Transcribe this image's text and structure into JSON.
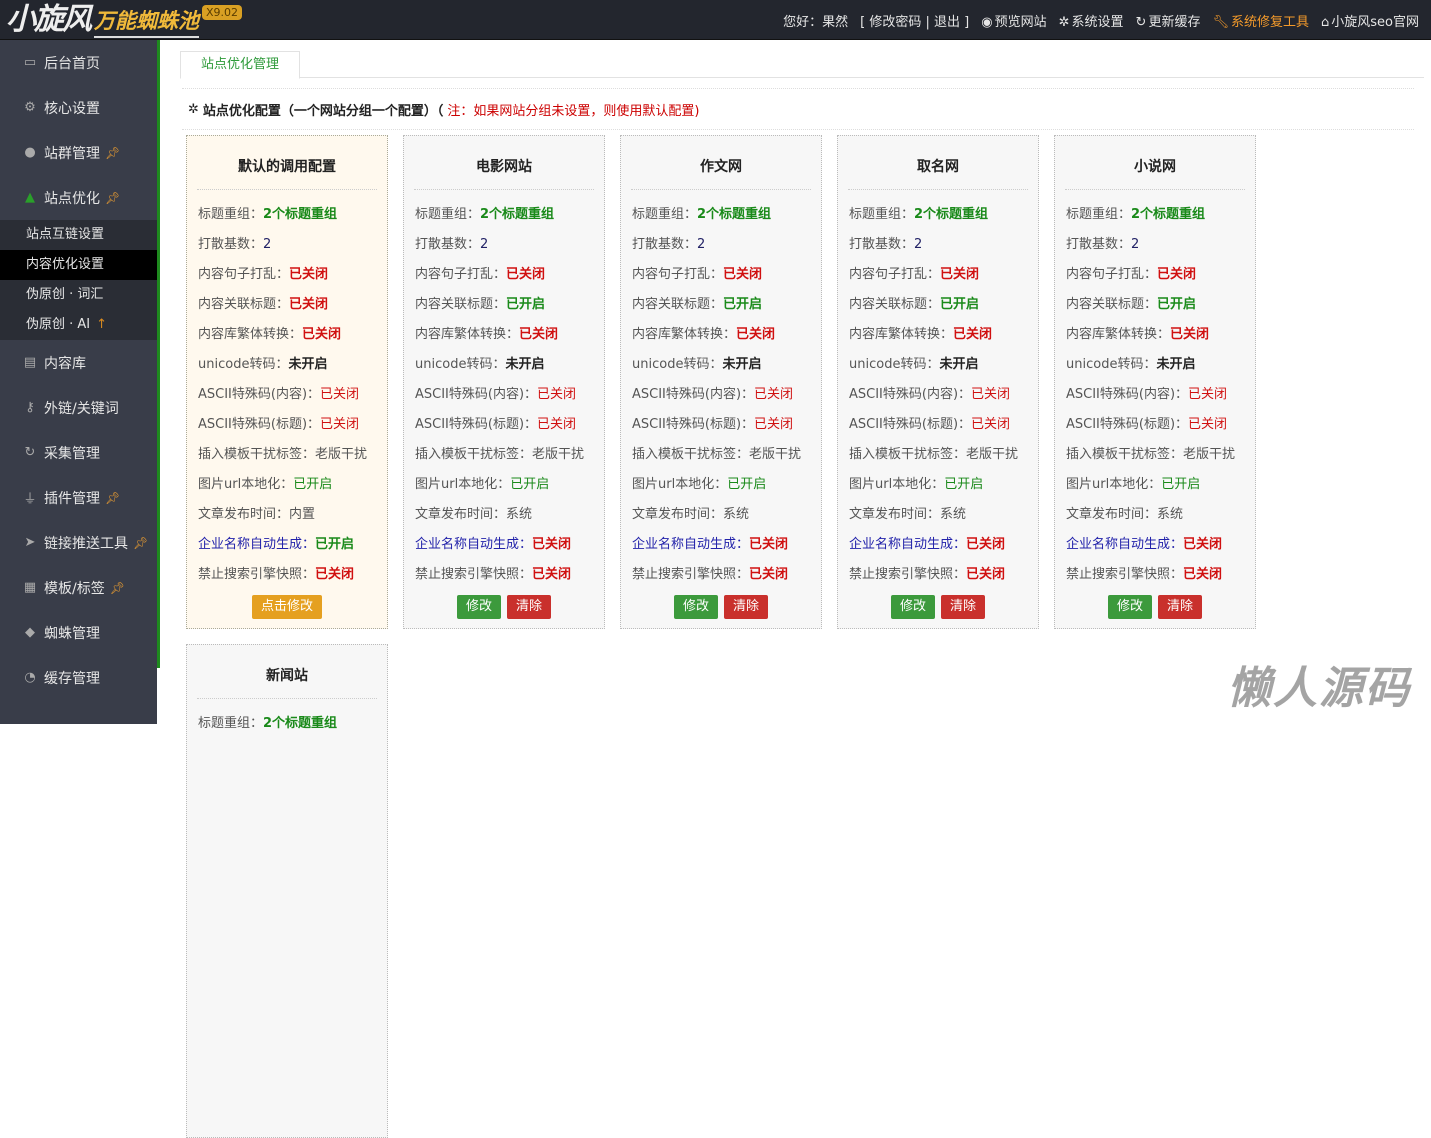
{
  "header": {
    "logo_main": "小旋风",
    "logo_sub": "万能蜘蛛池",
    "version": "X9.02",
    "greeting": "您好：果然",
    "change_password": "[ 修改密码",
    "separator": "|",
    "logout": "退出 ]",
    "preview": "预览网站",
    "settings": "系统设置",
    "refresh_cache": "更新缓存",
    "repair": "系统修复工具",
    "official": "小旋风seo官网"
  },
  "sidebar": {
    "items": [
      {
        "label": "后台首页",
        "icon": "monitor-icon"
      },
      {
        "label": "核心设置",
        "icon": "gear-icon"
      },
      {
        "label": "站群管理",
        "icon": "user-icon",
        "pin": true
      },
      {
        "label": "站点优化",
        "icon": "thumbs-up-icon",
        "pin": true
      },
      {
        "label": "内容库",
        "icon": "document-icon"
      },
      {
        "label": "外链/关键词",
        "icon": "key-icon"
      },
      {
        "label": "采集管理",
        "icon": "refresh-icon"
      },
      {
        "label": "插件管理",
        "icon": "plug-icon",
        "pin": true
      },
      {
        "label": "链接推送工具",
        "icon": "send-icon",
        "pin": true
      },
      {
        "label": "模板/标签",
        "icon": "windows-icon",
        "pin": true
      },
      {
        "label": "蜘蛛管理",
        "icon": "android-icon"
      },
      {
        "label": "缓存管理",
        "icon": "timer-icon"
      }
    ],
    "submenu": [
      {
        "label": "站点互链设置"
      },
      {
        "label": "内容优化设置",
        "current": true
      },
      {
        "label": "伪原创 · 词汇"
      },
      {
        "label": "伪原创 · AI",
        "up": "↑"
      }
    ]
  },
  "main": {
    "tab": "站点优化管理",
    "section_title": "站点优化配置（一个网站分组一个配置）（",
    "section_note": "注：如果网站分组未设置，则使用默认配置)",
    "buttons": {
      "edit_default": "点击修改",
      "edit": "修改",
      "clear": "清除"
    },
    "cards": [
      {
        "title": "默认的调用配置",
        "default": true,
        "rows": [
          [
            "标题重组：",
            "2个标题重组",
            "v-green b"
          ],
          [
            "打散基数：",
            "2",
            "v-num"
          ],
          [
            "内容句子打乱：",
            "已关闭",
            "v-red b"
          ],
          [
            "内容关联标题：",
            "已关闭",
            "v-red b"
          ],
          [
            "内容库繁体转换：",
            "已关闭",
            "v-red b"
          ],
          [
            "unicode转码：",
            "未开启",
            "v-dark"
          ],
          [
            "ASCII特殊码(内容)：",
            "已关闭",
            "v-red"
          ],
          [
            "ASCII特殊码(标题)：",
            "已关闭",
            "v-red"
          ],
          [
            "插入模板干扰标签：",
            "老版干扰",
            "v-plain"
          ],
          [
            "图片url本地化：",
            "已开启",
            "v-green"
          ],
          [
            "文章发布时间：",
            "内置",
            "v-plain"
          ],
          [
            "企业名称自动生成：",
            "已开启",
            "v-green b",
            "blue"
          ],
          [
            "禁止搜索引擎快照：",
            "已关闭",
            "v-red b"
          ]
        ]
      },
      {
        "title": "电影网站",
        "rows": [
          [
            "标题重组：",
            "2个标题重组",
            "v-green b"
          ],
          [
            "打散基数：",
            "2",
            "v-num"
          ],
          [
            "内容句子打乱：",
            "已关闭",
            "v-red b"
          ],
          [
            "内容关联标题：",
            "已开启",
            "v-green b"
          ],
          [
            "内容库繁体转换：",
            "已关闭",
            "v-red b"
          ],
          [
            "unicode转码：",
            "未开启",
            "v-dark"
          ],
          [
            "ASCII特殊码(内容)：",
            "已关闭",
            "v-red"
          ],
          [
            "ASCII特殊码(标题)：",
            "已关闭",
            "v-red"
          ],
          [
            "插入模板干扰标签：",
            "老版干扰",
            "v-plain"
          ],
          [
            "图片url本地化：",
            "已开启",
            "v-green"
          ],
          [
            "文章发布时间：",
            "系统",
            "v-plain"
          ],
          [
            "企业名称自动生成：",
            "已关闭",
            "v-red b",
            "blue"
          ],
          [
            "禁止搜索引擎快照：",
            "已关闭",
            "v-red b"
          ]
        ]
      },
      {
        "title": "作文网",
        "rows": [
          [
            "标题重组：",
            "2个标题重组",
            "v-green b"
          ],
          [
            "打散基数：",
            "2",
            "v-num"
          ],
          [
            "内容句子打乱：",
            "已关闭",
            "v-red b"
          ],
          [
            "内容关联标题：",
            "已开启",
            "v-green b"
          ],
          [
            "内容库繁体转换：",
            "已关闭",
            "v-red b"
          ],
          [
            "unicode转码：",
            "未开启",
            "v-dark"
          ],
          [
            "ASCII特殊码(内容)：",
            "已关闭",
            "v-red"
          ],
          [
            "ASCII特殊码(标题)：",
            "已关闭",
            "v-red"
          ],
          [
            "插入模板干扰标签：",
            "老版干扰",
            "v-plain"
          ],
          [
            "图片url本地化：",
            "已开启",
            "v-green"
          ],
          [
            "文章发布时间：",
            "系统",
            "v-plain"
          ],
          [
            "企业名称自动生成：",
            "已关闭",
            "v-red b",
            "blue"
          ],
          [
            "禁止搜索引擎快照：",
            "已关闭",
            "v-red b"
          ]
        ]
      },
      {
        "title": "取名网",
        "rows": [
          [
            "标题重组：",
            "2个标题重组",
            "v-green b"
          ],
          [
            "打散基数：",
            "2",
            "v-num"
          ],
          [
            "内容句子打乱：",
            "已关闭",
            "v-red b"
          ],
          [
            "内容关联标题：",
            "已开启",
            "v-green b"
          ],
          [
            "内容库繁体转换：",
            "已关闭",
            "v-red b"
          ],
          [
            "unicode转码：",
            "未开启",
            "v-dark"
          ],
          [
            "ASCII特殊码(内容)：",
            "已关闭",
            "v-red"
          ],
          [
            "ASCII特殊码(标题)：",
            "已关闭",
            "v-red"
          ],
          [
            "插入模板干扰标签：",
            "老版干扰",
            "v-plain"
          ],
          [
            "图片url本地化：",
            "已开启",
            "v-green"
          ],
          [
            "文章发布时间：",
            "系统",
            "v-plain"
          ],
          [
            "企业名称自动生成：",
            "已关闭",
            "v-red b",
            "blue"
          ],
          [
            "禁止搜索引擎快照：",
            "已关闭",
            "v-red b"
          ]
        ]
      },
      {
        "title": "小说网",
        "rows": [
          [
            "标题重组：",
            "2个标题重组",
            "v-green b"
          ],
          [
            "打散基数：",
            "2",
            "v-num"
          ],
          [
            "内容句子打乱：",
            "已关闭",
            "v-red b"
          ],
          [
            "内容关联标题：",
            "已开启",
            "v-green b"
          ],
          [
            "内容库繁体转换：",
            "已关闭",
            "v-red b"
          ],
          [
            "unicode转码：",
            "未开启",
            "v-dark"
          ],
          [
            "ASCII特殊码(内容)：",
            "已关闭",
            "v-red"
          ],
          [
            "ASCII特殊码(标题)：",
            "已关闭",
            "v-red"
          ],
          [
            "插入模板干扰标签：",
            "老版干扰",
            "v-plain"
          ],
          [
            "图片url本地化：",
            "已开启",
            "v-green"
          ],
          [
            "文章发布时间：",
            "系统",
            "v-plain"
          ],
          [
            "企业名称自动生成：",
            "已关闭",
            "v-red b",
            "blue"
          ],
          [
            "禁止搜索引擎快照：",
            "已关闭",
            "v-red b"
          ]
        ]
      },
      {
        "title": "新闻站",
        "rows": [
          [
            "标题重组：",
            "2个标题重组",
            "v-green b"
          ]
        ]
      }
    ]
  },
  "watermark": "懒人源码"
}
